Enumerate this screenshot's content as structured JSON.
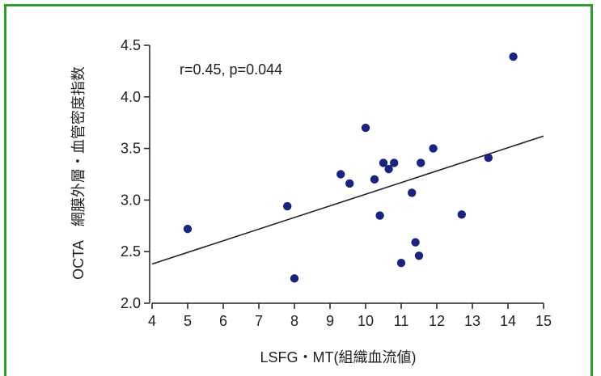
{
  "colors": {
    "frame": "#2ca02c",
    "point": "#1a237e",
    "line": "#222222",
    "axis": "#222222"
  },
  "chart_data": {
    "type": "scatter",
    "xlabel": "LSFG・MT(組織血流値)",
    "ylabel": "OCTA　網膜外層・血管密度指数",
    "xlim": [
      4,
      15
    ],
    "ylim": [
      2.0,
      4.5
    ],
    "xticks": [
      "4",
      "5",
      "6",
      "7",
      "8",
      "9",
      "10",
      "11",
      "12",
      "13",
      "14",
      "15"
    ],
    "yticks": [
      "2.0",
      "2.5",
      "3.0",
      "3.5",
      "4.0",
      "4.5"
    ],
    "annotation": "r=0.45, p=0.044",
    "trendline": {
      "x": [
        4,
        15
      ],
      "y": [
        2.38,
        3.62
      ]
    },
    "points": [
      {
        "x": 5.0,
        "y": 2.72
      },
      {
        "x": 7.8,
        "y": 2.94
      },
      {
        "x": 8.0,
        "y": 2.24
      },
      {
        "x": 9.3,
        "y": 3.25
      },
      {
        "x": 9.55,
        "y": 3.16
      },
      {
        "x": 10.0,
        "y": 3.7
      },
      {
        "x": 10.25,
        "y": 3.2
      },
      {
        "x": 10.4,
        "y": 2.85
      },
      {
        "x": 10.5,
        "y": 3.36
      },
      {
        "x": 10.65,
        "y": 3.3
      },
      {
        "x": 10.8,
        "y": 3.36
      },
      {
        "x": 11.0,
        "y": 2.39
      },
      {
        "x": 11.3,
        "y": 3.07
      },
      {
        "x": 11.4,
        "y": 2.59
      },
      {
        "x": 11.5,
        "y": 2.46
      },
      {
        "x": 11.55,
        "y": 3.36
      },
      {
        "x": 11.9,
        "y": 3.5
      },
      {
        "x": 12.7,
        "y": 2.86
      },
      {
        "x": 13.45,
        "y": 3.41
      },
      {
        "x": 14.15,
        "y": 4.39
      }
    ]
  }
}
